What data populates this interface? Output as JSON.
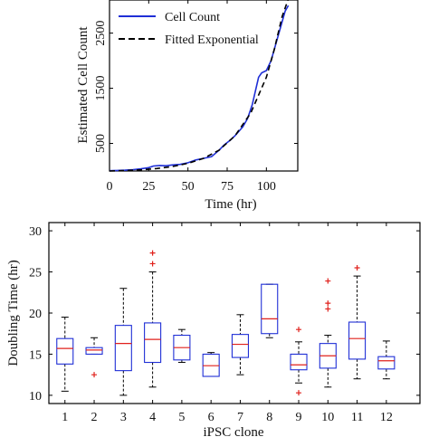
{
  "chart_data": [
    {
      "type": "line",
      "title": "",
      "xlabel": "Time (hr)",
      "ylabel": "Estimated Cell Count",
      "xlim": [
        0,
        120
      ],
      "ylim": [
        0,
        3100
      ],
      "xticks": [
        0,
        25,
        50,
        75,
        100
      ],
      "yticks": [
        500,
        1500,
        2500
      ],
      "legend": "top-left",
      "grid": false,
      "colors": {
        "Cell Count": "#1f2fd6",
        "Fitted Exponential": "#000000"
      },
      "series": [
        {
          "name": "Cell Count",
          "x": [
            0,
            5,
            10,
            15,
            20,
            25,
            28,
            32,
            36,
            40,
            45,
            50,
            55,
            60,
            65,
            70,
            73,
            77,
            80,
            85,
            88,
            91,
            93,
            95,
            97,
            100,
            103,
            106,
            109,
            112,
            114
          ],
          "y": [
            5,
            10,
            15,
            25,
            40,
            60,
            90,
            100,
            95,
            110,
            120,
            150,
            200,
            230,
            260,
            380,
            470,
            560,
            640,
            800,
            950,
            1200,
            1450,
            1700,
            1780,
            1820,
            2000,
            2300,
            2600,
            2900,
            3000
          ]
        },
        {
          "name": "Fitted Exponential",
          "x": [
            0,
            10,
            20,
            30,
            40,
            50,
            60,
            70,
            80,
            90,
            100,
            105,
            110,
            115
          ],
          "y": [
            0,
            8,
            22,
            45,
            80,
            140,
            230,
            380,
            640,
            1050,
            1700,
            2200,
            2800,
            3200
          ]
        }
      ]
    },
    {
      "type": "box",
      "title": "",
      "xlabel": "iPSC clone",
      "ylabel": "Doubling Time (hr)",
      "ylim": [
        9,
        31
      ],
      "yticks": [
        10,
        15,
        20,
        25,
        30
      ],
      "categories": [
        "1",
        "2",
        "3",
        "4",
        "5",
        "6",
        "7",
        "8",
        "9",
        "10",
        "11",
        "12"
      ],
      "colors": {
        "box": "#1f2fd6",
        "median": "#e0201b",
        "outlier": "#e0201b",
        "whisker": "#000000"
      },
      "boxes": [
        {
          "lower_whisker": 10.5,
          "q1": 13.8,
          "median": 15.7,
          "q3": 16.9,
          "upper_whisker": 19.5,
          "outliers": []
        },
        {
          "lower_whisker": 15.0,
          "q1": 15.0,
          "median": 15.5,
          "q3": 15.8,
          "upper_whisker": 17.0,
          "outliers": [
            12.5
          ]
        },
        {
          "lower_whisker": 10.0,
          "q1": 13.0,
          "median": 16.3,
          "q3": 18.5,
          "upper_whisker": 23.0,
          "outliers": []
        },
        {
          "lower_whisker": 11.0,
          "q1": 14.0,
          "median": 16.8,
          "q3": 18.8,
          "upper_whisker": 25.0,
          "outliers": [
            26.0,
            27.3
          ]
        },
        {
          "lower_whisker": 14.0,
          "q1": 14.3,
          "median": 15.8,
          "q3": 17.3,
          "upper_whisker": 18.0,
          "outliers": []
        },
        {
          "lower_whisker": 12.3,
          "q1": 12.3,
          "median": 13.6,
          "q3": 15.0,
          "upper_whisker": 15.2,
          "outliers": []
        },
        {
          "lower_whisker": 12.5,
          "q1": 14.6,
          "median": 16.2,
          "q3": 17.4,
          "upper_whisker": 19.8,
          "outliers": []
        },
        {
          "lower_whisker": 17.0,
          "q1": 17.5,
          "median": 19.3,
          "q3": 23.5,
          "upper_whisker": 23.5,
          "outliers": []
        },
        {
          "lower_whisker": 11.5,
          "q1": 13.1,
          "median": 13.7,
          "q3": 15.0,
          "upper_whisker": 16.5,
          "outliers": [
            10.3,
            18.0
          ]
        },
        {
          "lower_whisker": 11.0,
          "q1": 13.3,
          "median": 14.8,
          "q3": 16.3,
          "upper_whisker": 17.3,
          "outliers": [
            20.5,
            21.2,
            23.9
          ]
        },
        {
          "lower_whisker": 12.0,
          "q1": 14.4,
          "median": 16.9,
          "q3": 18.9,
          "upper_whisker": 24.5,
          "outliers": [
            25.5
          ]
        },
        {
          "lower_whisker": 12.0,
          "q1": 13.2,
          "median": 14.2,
          "q3": 14.7,
          "upper_whisker": 16.6,
          "outliers": []
        }
      ]
    }
  ]
}
